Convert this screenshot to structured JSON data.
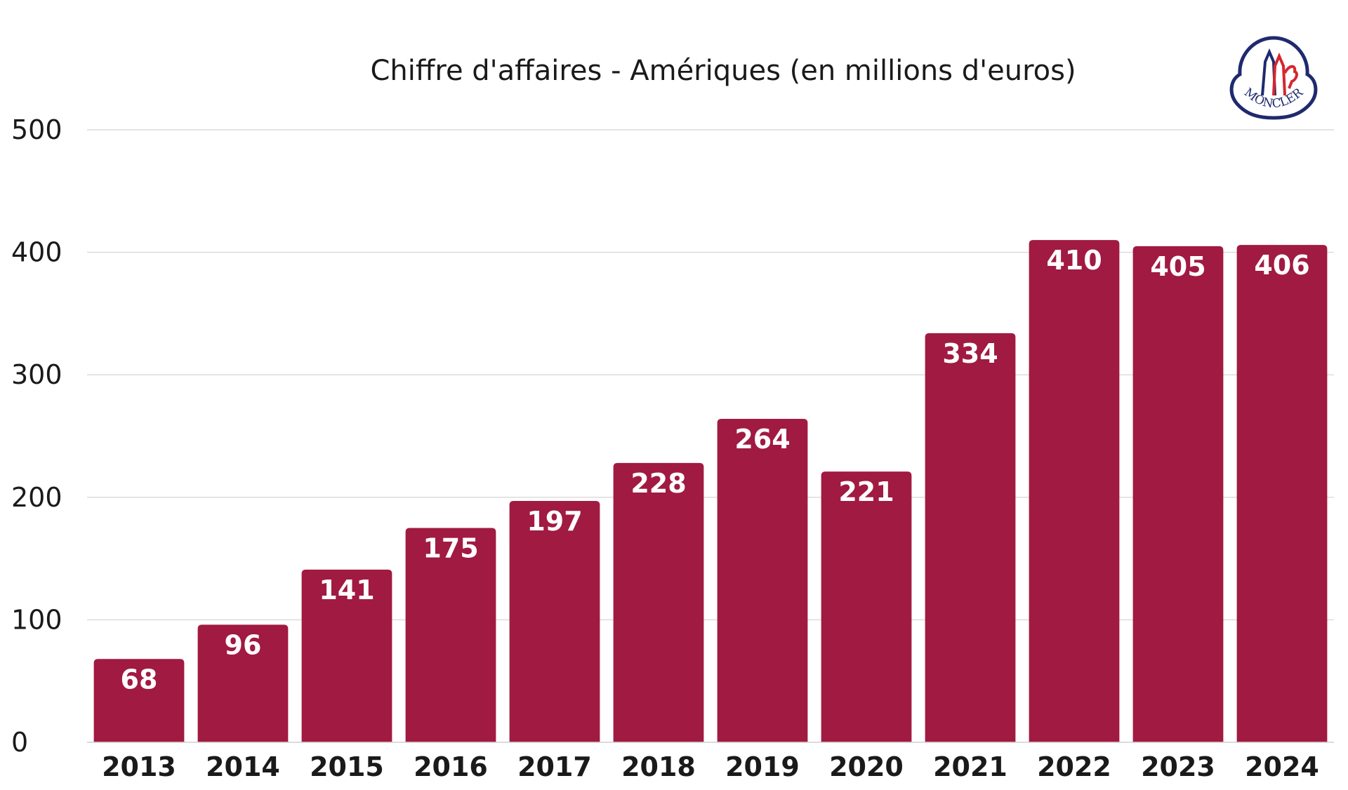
{
  "chart_data": {
    "type": "bar",
    "title": "Chiffre d'affaires - Amériques (en millions d'euros)",
    "xlabel": "",
    "ylabel": "",
    "categories": [
      "2013",
      "2014",
      "2015",
      "2016",
      "2017",
      "2018",
      "2019",
      "2020",
      "2021",
      "2022",
      "2023",
      "2024"
    ],
    "values": [
      68,
      96,
      141,
      175,
      197,
      228,
      264,
      221,
      334,
      410,
      405,
      406
    ],
    "ylim": [
      0,
      500
    ],
    "yticks": [
      0,
      100,
      200,
      300,
      400,
      500
    ],
    "grid": true,
    "bar_color": "#a11a41",
    "data_label_color": "#ffffff"
  },
  "logo": {
    "text": "MONCLER",
    "colors": {
      "outline": "#1f2a6e",
      "blue": "#1f2a6e",
      "red": "#d6262f"
    }
  }
}
